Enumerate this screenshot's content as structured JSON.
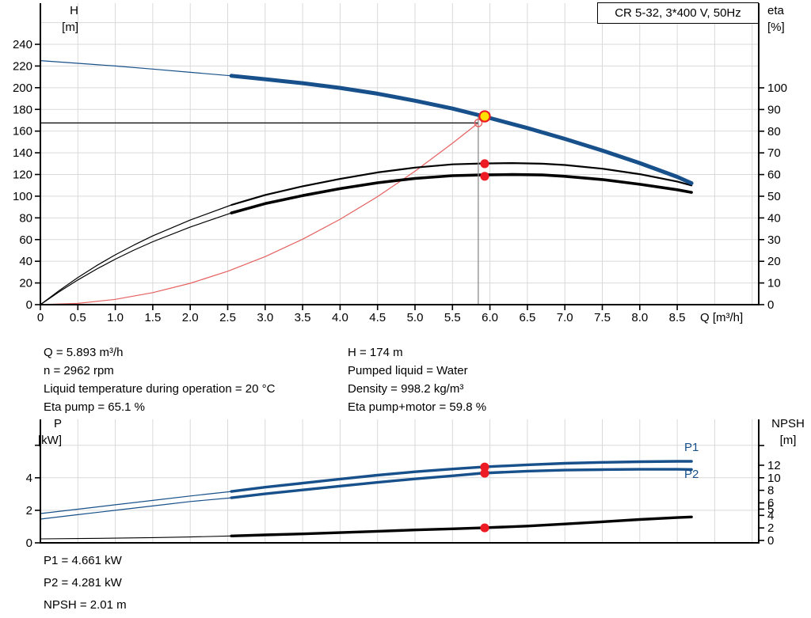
{
  "title_box": {
    "label": "CR 5-32, 3*400 V, 50Hz"
  },
  "labels": {
    "h_axis": [
      "H",
      "[m]"
    ],
    "eta_axis": [
      "eta",
      "[%]"
    ],
    "p_axis": [
      "P",
      "[kW]"
    ],
    "npsh_axis": [
      "NPSH",
      "[m]"
    ],
    "q_axis": "Q [m³/h]",
    "p1_curve": "P1",
    "p2_curve": "P2"
  },
  "info_top": {
    "left": [
      "Q = 5.893 m³/h",
      "n = 2962 rpm",
      "Liquid temperature during operation = 20 °C",
      "Eta pump = 65.1 %"
    ],
    "right": [
      "H = 174 m",
      "Pumped liquid = Water",
      "Density = 998.2 kg/m³",
      "Eta pump+motor = 59.8 %"
    ]
  },
  "info_bottom": [
    "P1 = 4.661 kW",
    "P2 = 4.281 kW",
    "NPSH = 2.01 m"
  ],
  "colors": {
    "curve_blue": "#17508a",
    "curve_black": "#000000",
    "system_red": "#e66060",
    "dot_red": "#ed1c24",
    "duty_yellow": "#ffe100",
    "grid": "#d9d9d9",
    "duty_gray": "#8c8c8c",
    "axis": "#000000"
  },
  "chart_data": [
    {
      "name": "qh-eta-chart",
      "type": "line",
      "title": "CR 5-32, 3*400 V, 50Hz",
      "xlabel": "Q [m³/h]",
      "ylabel_left": "H [m]",
      "ylabel_right": "eta [%]",
      "x_range": [
        0,
        9.59
      ],
      "h_range": [
        0,
        275
      ],
      "eta_range": [
        0,
        137
      ],
      "x_tick_values": [
        0,
        0.5,
        1,
        1.5,
        2,
        2.5,
        3,
        3.5,
        4,
        4.5,
        5,
        5.5,
        6,
        6.5,
        7,
        7.5,
        8,
        8.5
      ],
      "x_tick_labels": [
        "0",
        "0.5",
        "1.0",
        "1.5",
        "2.0",
        "2.5",
        "3.0",
        "3.5",
        "4.0",
        "4.5",
        "5.0",
        "5.5",
        "6.0",
        "6.5",
        "7.0",
        "7.5",
        "8.0",
        "8.5"
      ],
      "left_axis": {
        "key": "h",
        "tick_values": [
          0,
          20,
          40,
          60,
          80,
          100,
          120,
          140,
          160,
          180,
          200,
          220,
          240
        ],
        "tick_labels": [
          "0",
          "20",
          "40",
          "60",
          "80",
          "100",
          "120",
          "140",
          "160",
          "180",
          "200",
          "220",
          "240"
        ]
      },
      "right_axis": {
        "key": "eta",
        "tick_values": [
          0,
          10,
          20,
          30,
          40,
          50,
          60,
          70,
          80,
          90,
          100
        ],
        "tick_labels": [
          "0",
          "10",
          "20",
          "30",
          "40",
          "50",
          "60",
          "70",
          "80",
          "90",
          "100"
        ]
      },
      "grid_x": [
        0.5,
        1,
        1.5,
        2,
        2.5,
        3,
        3.5,
        4,
        4.5,
        5,
        5.5,
        6,
        6.5,
        7,
        7.5,
        8,
        8.5,
        9,
        9.5
      ],
      "grid_y_axis": "h",
      "grid_y_values": [
        20,
        40,
        60,
        80,
        100,
        120,
        140,
        160,
        180,
        200,
        220,
        240,
        260
      ],
      "series": [
        {
          "name": "system-curve",
          "axis": "h",
          "color": "#e66060",
          "width": 1.2,
          "points": [
            [
              0,
              0
            ],
            [
              0.5,
              1.2
            ],
            [
              1,
              4.9
            ],
            [
              1.5,
              11.1
            ],
            [
              2,
              19.7
            ],
            [
              2.5,
              30.8
            ],
            [
              3,
              44.3
            ],
            [
              3.5,
              60.3
            ],
            [
              4,
              78.7
            ],
            [
              4.5,
              99.6
            ],
            [
              5,
              123
            ],
            [
              5.5,
              148.8
            ],
            [
              5.845,
              167.5
            ]
          ]
        },
        {
          "name": "duty-head-line",
          "axis": "h",
          "color": "#000000",
          "width": 1.2,
          "points": [
            [
              0,
              167.5
            ],
            [
              5.845,
              167.5
            ]
          ]
        },
        {
          "name": "eta-pump-curve-thin",
          "axis": "eta",
          "color": "#000000",
          "width": 1.2,
          "points": [
            [
              0,
              0
            ],
            [
              0.25,
              6.5
            ],
            [
              0.5,
              12.5
            ],
            [
              0.75,
              18
            ],
            [
              1,
              23
            ],
            [
              1.25,
              27.5
            ],
            [
              1.5,
              31.7
            ],
            [
              2,
              39
            ],
            [
              2.55,
              46
            ]
          ]
        },
        {
          "name": "eta-motor-curve-thin",
          "axis": "eta",
          "color": "#000000",
          "width": 1.2,
          "points": [
            [
              0,
              0
            ],
            [
              0.25,
              5.9
            ],
            [
              0.5,
              11.4
            ],
            [
              0.75,
              16.4
            ],
            [
              1,
              21
            ],
            [
              1.25,
              25.2
            ],
            [
              1.5,
              29
            ],
            [
              2,
              35.8
            ],
            [
              2.55,
              42.3
            ]
          ]
        },
        {
          "name": "eta-pump-curve",
          "axis": "eta",
          "color": "#000000",
          "width": 2.2,
          "points": [
            [
              2.55,
              46
            ],
            [
              3,
              50.6
            ],
            [
              3.5,
              54.6
            ],
            [
              4,
              58
            ],
            [
              4.5,
              61
            ],
            [
              5,
              63.2
            ],
            [
              5.5,
              64.7
            ],
            [
              5.893,
              65.1
            ],
            [
              6.3,
              65.3
            ],
            [
              6.7,
              65
            ],
            [
              7,
              64.4
            ],
            [
              7.5,
              62.7
            ],
            [
              8,
              60.2
            ],
            [
              8.5,
              56.8
            ],
            [
              8.69,
              55
            ]
          ]
        },
        {
          "name": "eta-motor-curve",
          "axis": "eta",
          "color": "#000000",
          "width": 3.6,
          "points": [
            [
              2.55,
              42.3
            ],
            [
              3,
              46.6
            ],
            [
              3.5,
              50.3
            ],
            [
              4,
              53.5
            ],
            [
              4.5,
              56.2
            ],
            [
              5,
              58.2
            ],
            [
              5.5,
              59.5
            ],
            [
              5.893,
              59.8
            ],
            [
              6.3,
              60
            ],
            [
              6.7,
              59.8
            ],
            [
              7,
              59.2
            ],
            [
              7.5,
              57.7
            ],
            [
              8,
              55.5
            ],
            [
              8.5,
              53
            ],
            [
              8.69,
              51.8
            ]
          ]
        },
        {
          "name": "hq-curve-thin",
          "axis": "h",
          "color": "#17508a",
          "width": 1.2,
          "points": [
            [
              0,
              225
            ],
            [
              0.5,
              222.5
            ],
            [
              1,
              220
            ],
            [
              1.5,
              217.2
            ],
            [
              2,
              214.2
            ],
            [
              2.55,
              211
            ]
          ]
        },
        {
          "name": "hq-curve",
          "axis": "h",
          "color": "#17508a",
          "width": 5,
          "points": [
            [
              2.55,
              211
            ],
            [
              3,
              207.8
            ],
            [
              3.5,
              204.2
            ],
            [
              4,
              199.8
            ],
            [
              4.5,
              194.5
            ],
            [
              5,
              188
            ],
            [
              5.5,
              180.8
            ],
            [
              5.893,
              174
            ],
            [
              6.5,
              162.8
            ],
            [
              7,
              152.8
            ],
            [
              7.5,
              142
            ],
            [
              8,
              130.5
            ],
            [
              8.5,
              117.8
            ],
            [
              8.69,
              112
            ]
          ]
        },
        {
          "name": "duty-flow-line",
          "axis": "h",
          "color": "#8c8c8c",
          "width": 1.3,
          "points": [
            [
              5.845,
              173
            ],
            [
              5.845,
              0
            ]
          ]
        }
      ],
      "markers": [
        {
          "name": "system-duty-circle",
          "axis": "h",
          "q": 5.845,
          "v": 167.5,
          "r": 4.6,
          "fill": "none",
          "stroke": "#e66060",
          "sw": 1.4
        },
        {
          "name": "eta-pump-duty-dot",
          "axis": "eta",
          "q": 5.93,
          "v": 65,
          "r": 5.6,
          "fill": "#ed1c24",
          "stroke": "none",
          "sw": 0
        },
        {
          "name": "eta-motor-duty-dot",
          "axis": "eta",
          "q": 5.93,
          "v": 59.2,
          "r": 5.6,
          "fill": "#ed1c24",
          "stroke": "none",
          "sw": 0
        },
        {
          "name": "duty-point",
          "axis": "h",
          "q": 5.93,
          "v": 173.6,
          "r": 6.6,
          "fill": "#ffe100",
          "stroke": "#ed1c24",
          "sw": 2.2
        }
      ],
      "duty_point": {
        "Q_m3h": 5.893,
        "H_m": 174,
        "eta_pump_pct": 65.1,
        "eta_pump_motor_pct": 59.8
      }
    },
    {
      "name": "power-npsh-chart",
      "type": "line",
      "xlabel": "",
      "ylabel_left": "P [kW]",
      "ylabel_right": "NPSH [m]",
      "x_range": [
        0,
        9.59
      ],
      "p_range": [
        0,
        7.6
      ],
      "npsh_range": [
        0,
        19.3
      ],
      "x_tick_values": [],
      "x_tick_labels": [],
      "left_axis": {
        "key": "p",
        "tick_values": [
          0,
          2,
          4,
          6
        ],
        "tick_labels": [
          "0",
          "2",
          "4",
          ""
        ]
      },
      "right_axis": {
        "key": "n",
        "tick_values": [
          0,
          2,
          4,
          5,
          6,
          8,
          10,
          12,
          15.15
        ],
        "tick_labels": [
          "0",
          "2",
          "4",
          "5",
          "6",
          "8",
          "10",
          "12",
          ""
        ]
      },
      "grid_x": [
        0.5,
        1,
        1.5,
        2,
        2.5,
        3,
        3.5,
        4,
        4.5,
        5,
        5.5,
        6,
        6.5,
        7,
        7.5,
        8,
        8.5,
        9,
        9.5
      ],
      "grid_y_axis": "p",
      "grid_y_values": [
        2,
        4,
        6
      ],
      "series": [
        {
          "name": "p1-curve-thin",
          "axis": "p",
          "color": "#17508a",
          "width": 1.2,
          "points": [
            [
              0,
              1.8
            ],
            [
              0.5,
              2.07
            ],
            [
              1,
              2.34
            ],
            [
              1.5,
              2.61
            ],
            [
              2,
              2.88
            ],
            [
              2.55,
              3.16
            ]
          ]
        },
        {
          "name": "p2-curve-thin",
          "axis": "p",
          "color": "#17508a",
          "width": 1.2,
          "points": [
            [
              0,
              1.46
            ],
            [
              0.5,
              1.73
            ],
            [
              1,
              2.0
            ],
            [
              1.5,
              2.27
            ],
            [
              2,
              2.54
            ],
            [
              2.55,
              2.77
            ]
          ]
        },
        {
          "name": "p1-curve",
          "axis": "p",
          "color": "#17508a",
          "width": 3.4,
          "points": [
            [
              2.55,
              3.16
            ],
            [
              3,
              3.42
            ],
            [
              3.5,
              3.67
            ],
            [
              4,
              3.92
            ],
            [
              4.5,
              4.16
            ],
            [
              5,
              4.37
            ],
            [
              5.5,
              4.54
            ],
            [
              5.893,
              4.661
            ],
            [
              6.5,
              4.8
            ],
            [
              7,
              4.89
            ],
            [
              7.5,
              4.95
            ],
            [
              8,
              4.99
            ],
            [
              8.5,
              5.01
            ],
            [
              8.69,
              5.01
            ]
          ]
        },
        {
          "name": "p2-curve",
          "axis": "p",
          "color": "#17508a",
          "width": 3.4,
          "points": [
            [
              2.55,
              2.77
            ],
            [
              3,
              3.01
            ],
            [
              3.5,
              3.25
            ],
            [
              4,
              3.49
            ],
            [
              4.5,
              3.72
            ],
            [
              5,
              3.93
            ],
            [
              5.5,
              4.12
            ],
            [
              5.893,
              4.281
            ],
            [
              6.5,
              4.41
            ],
            [
              7,
              4.47
            ],
            [
              7.5,
              4.5
            ],
            [
              8,
              4.52
            ],
            [
              8.5,
              4.52
            ],
            [
              8.69,
              4.51
            ]
          ]
        },
        {
          "name": "npsh-curve-thin",
          "axis": "n",
          "color": "#000000",
          "width": 1.1,
          "points": [
            [
              0,
              0.25
            ],
            [
              0.5,
              0.3
            ],
            [
              1,
              0.37
            ],
            [
              1.5,
              0.45
            ],
            [
              2,
              0.56
            ],
            [
              2.55,
              0.72
            ]
          ]
        },
        {
          "name": "npsh-curve",
          "axis": "n",
          "color": "#000000",
          "width": 3.4,
          "points": [
            [
              2.55,
              0.72
            ],
            [
              3,
              0.88
            ],
            [
              3.5,
              1.05
            ],
            [
              4,
              1.25
            ],
            [
              4.5,
              1.47
            ],
            [
              5,
              1.68
            ],
            [
              5.5,
              1.86
            ],
            [
              5.893,
              2.01
            ],
            [
              6.5,
              2.3
            ],
            [
              7,
              2.62
            ],
            [
              7.5,
              2.98
            ],
            [
              8,
              3.35
            ],
            [
              8.5,
              3.65
            ],
            [
              8.69,
              3.75
            ]
          ]
        }
      ],
      "markers": [
        {
          "name": "p1-duty-dot",
          "axis": "p",
          "q": 5.93,
          "v": 4.661,
          "r": 5.6,
          "fill": "#ed1c24",
          "stroke": "none",
          "sw": 0
        },
        {
          "name": "p2-duty-dot",
          "axis": "p",
          "q": 5.93,
          "v": 4.281,
          "r": 5.6,
          "fill": "#ed1c24",
          "stroke": "none",
          "sw": 0
        },
        {
          "name": "npsh-duty-dot",
          "axis": "n",
          "q": 5.93,
          "v": 2.01,
          "r": 5.6,
          "fill": "#ed1c24",
          "stroke": "none",
          "sw": 0
        }
      ],
      "duty_point": {
        "Q_m3h": 5.893,
        "P1_kW": 4.661,
        "P2_kW": 4.281,
        "NPSH_m": 2.01
      }
    }
  ]
}
